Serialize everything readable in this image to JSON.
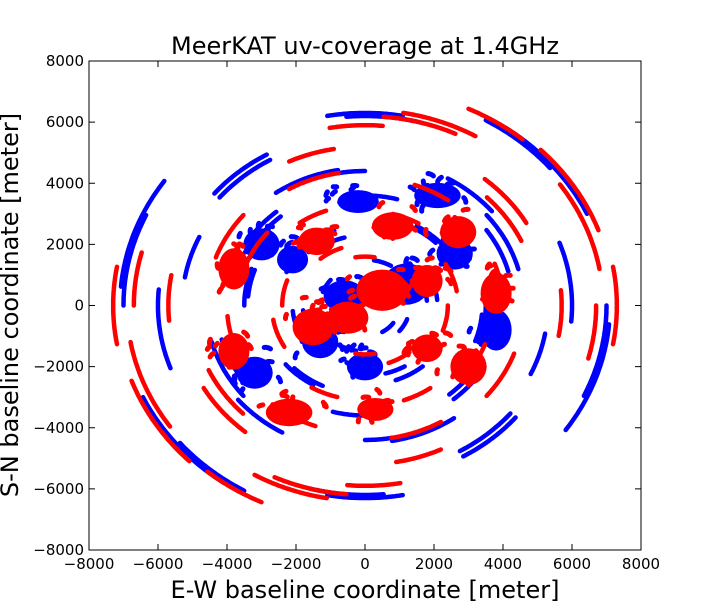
{
  "chart_data": {
    "type": "scatter",
    "title": "MeerKAT uv-coverage at 1.4GHz",
    "xlabel": "E-W baseline coordinate [meter]",
    "ylabel": "S-N baseline coordinate [meter]",
    "xlim": [
      -8000,
      8000
    ],
    "ylim": [
      -8000,
      8000
    ],
    "xticks": [
      -8000,
      -6000,
      -4000,
      -2000,
      0,
      2000,
      4000,
      6000,
      8000
    ],
    "yticks": [
      -8000,
      -6000,
      -4000,
      -2000,
      0,
      2000,
      4000,
      6000,
      8000
    ],
    "xtick_labels": [
      "−8000",
      "−6000",
      "−4000",
      "−2000",
      "0",
      "2000",
      "4000",
      "6000",
      "8000"
    ],
    "ytick_labels": [
      "−8000",
      "−6000",
      "−4000",
      "−2000",
      "0",
      "2000",
      "4000",
      "6000",
      "8000"
    ],
    "grid": false,
    "series": [
      {
        "color": "#0000ff",
        "arcs": [
          {
            "cx": 0,
            "cy": 0,
            "r": 7100,
            "a0": 145,
            "a1": 175
          },
          {
            "cx": 0,
            "cy": 0,
            "r": 7100,
            "a0": 205,
            "a1": 235
          },
          {
            "cx": 0,
            "cy": 0,
            "r": 7000,
            "a0": -25,
            "a1": 0
          },
          {
            "cx": 0,
            "cy": 0,
            "r": 7000,
            "a0": 40,
            "a1": 60
          },
          {
            "cx": 0,
            "cy": 0,
            "r": 6300,
            "a0": 80,
            "a1": 100
          },
          {
            "cx": 0,
            "cy": 0,
            "r": 6200,
            "a0": 255,
            "a1": 275
          },
          {
            "cx": 0,
            "cy": 0,
            "r": 6000,
            "a0": 175,
            "a1": 200
          },
          {
            "cx": 0,
            "cy": 0,
            "r": 5700,
            "a0": 120,
            "a1": 140
          },
          {
            "cx": 0,
            "cy": 0,
            "r": 5500,
            "a0": 300,
            "a1": 320
          },
          {
            "cx": 0,
            "cy": 0,
            "r": 5300,
            "a0": 155,
            "a1": 170
          },
          {
            "cx": 0,
            "cy": 0,
            "r": 4800,
            "a0": 220,
            "a1": 240
          },
          {
            "cx": 0,
            "cy": 0,
            "r": 4600,
            "a0": 15,
            "a1": 40
          },
          {
            "cx": 0,
            "cy": 0,
            "r": 4500,
            "a0": 100,
            "a1": 125
          },
          {
            "cx": 0,
            "cy": 0,
            "r": 4400,
            "a0": 90,
            "a1": 100
          },
          {
            "cx": 0,
            "cy": 0,
            "r": 4300,
            "a0": 195,
            "a1": 215
          },
          {
            "cx": 0,
            "cy": 0,
            "r": 4000,
            "a0": 130,
            "a1": 150
          },
          {
            "cx": 0,
            "cy": 0,
            "r": 3800,
            "a0": 310,
            "a1": 330
          },
          {
            "cx": 0,
            "cy": 0,
            "r": 3600,
            "a0": 255,
            "a1": 280
          },
          {
            "cx": 0,
            "cy": 0,
            "r": 3500,
            "a0": 160,
            "a1": 180
          },
          {
            "cx": 0,
            "cy": 0,
            "r": 3400,
            "a0": 340,
            "a1": 355
          },
          {
            "cx": 0,
            "cy": 0,
            "r": 3000,
            "a0": 40,
            "a1": 60
          },
          {
            "cx": 0,
            "cy": 0,
            "r": 2900,
            "a0": 225,
            "a1": 245
          },
          {
            "cx": 0,
            "cy": 0,
            "r": 2600,
            "a0": 110,
            "a1": 130
          },
          {
            "cx": 0,
            "cy": 0,
            "r": 2300,
            "a0": 285,
            "a1": 300
          },
          {
            "cx": 0,
            "cy": 0,
            "r": 2100,
            "a0": 185,
            "a1": 205
          },
          {
            "cx": 0,
            "cy": 0,
            "r": 1800,
            "a0": 5,
            "a1": 25
          },
          {
            "cx": 0,
            "cy": 0,
            "r": 1500,
            "a0": 240,
            "a1": 260
          },
          {
            "cx": 0,
            "cy": 0,
            "r": 1300,
            "a0": 140,
            "a1": 160
          },
          {
            "cx": 0,
            "cy": 0,
            "r": 1000,
            "a0": 300,
            "a1": 325
          }
        ],
        "blobs": [
          {
            "x": -3000,
            "y": 2000,
            "rx": 700,
            "ry": 700
          },
          {
            "x": -200,
            "y": 3400,
            "rx": 800,
            "ry": 500
          },
          {
            "x": 2100,
            "y": 3600,
            "rx": 900,
            "ry": 550
          },
          {
            "x": 3800,
            "y": -800,
            "rx": 600,
            "ry": 900
          },
          {
            "x": -2100,
            "y": 1500,
            "rx": 600,
            "ry": 600
          },
          {
            "x": -3200,
            "y": -2200,
            "rx": 700,
            "ry": 700
          },
          {
            "x": 0,
            "y": -2000,
            "rx": 700,
            "ry": 600
          },
          {
            "x": 2600,
            "y": 1700,
            "rx": 700,
            "ry": 700
          },
          {
            "x": -1300,
            "y": -1200,
            "rx": 700,
            "ry": 700
          },
          {
            "x": 1200,
            "y": 700,
            "rx": 900,
            "ry": 900
          },
          {
            "x": -600,
            "y": 300,
            "rx": 800,
            "ry": 700
          }
        ]
      },
      {
        "color": "#ff0000",
        "arcs": [
          {
            "cx": 0,
            "cy": 0,
            "r": 7300,
            "a0": 170,
            "a1": 190
          },
          {
            "cx": 0,
            "cy": 0,
            "r": 7200,
            "a0": 200,
            "a1": 225
          },
          {
            "cx": 0,
            "cy": 0,
            "r": 7100,
            "a0": 50,
            "a1": 65
          },
          {
            "cx": 0,
            "cy": 0,
            "r": 6900,
            "a0": 10,
            "a1": 35
          },
          {
            "cx": 0,
            "cy": 0,
            "r": 6700,
            "a0": -15,
            "a1": 0
          },
          {
            "cx": 0,
            "cy": 0,
            "r": 6400,
            "a0": 240,
            "a1": 260
          },
          {
            "cx": 0,
            "cy": 0,
            "r": 6200,
            "a0": 65,
            "a1": 85
          },
          {
            "cx": 0,
            "cy": 0,
            "r": 5900,
            "a0": 265,
            "a1": 280
          },
          {
            "cx": 0,
            "cy": 0,
            "r": 5700,
            "a0": 170,
            "a1": 185
          },
          {
            "cx": 0,
            "cy": 0,
            "r": 5400,
            "a0": 210,
            "a1": 230
          },
          {
            "cx": 0,
            "cy": 0,
            "r": 5200,
            "a0": 100,
            "a1": 115
          },
          {
            "cx": 0,
            "cy": 0,
            "r": 5000,
            "a0": 25,
            "a1": 45
          },
          {
            "cx": 0,
            "cy": 0,
            "r": 4600,
            "a0": 140,
            "a1": 160
          },
          {
            "cx": 0,
            "cy": 0,
            "r": 4400,
            "a0": 280,
            "a1": 300
          },
          {
            "cx": 0,
            "cy": 0,
            "r": 4200,
            "a0": 55,
            "a1": 70
          },
          {
            "cx": 0,
            "cy": 0,
            "r": 4000,
            "a0": 185,
            "a1": 200
          },
          {
            "cx": 0,
            "cy": 0,
            "r": 3700,
            "a0": 320,
            "a1": 340
          },
          {
            "cx": 0,
            "cy": 0,
            "r": 3300,
            "a0": 110,
            "a1": 125
          },
          {
            "cx": 0,
            "cy": 0,
            "r": 3100,
            "a0": 240,
            "a1": 255
          },
          {
            "cx": 0,
            "cy": 0,
            "r": 2700,
            "a0": 10,
            "a1": 30
          },
          {
            "cx": 0,
            "cy": 0,
            "r": 2400,
            "a0": 160,
            "a1": 180
          },
          {
            "cx": 0,
            "cy": 0,
            "r": 2000,
            "a0": 290,
            "a1": 310
          },
          {
            "cx": 0,
            "cy": 0,
            "r": 1600,
            "a0": 80,
            "a1": 100
          },
          {
            "cx": 0,
            "cy": 0,
            "r": 1200,
            "a0": 200,
            "a1": 220
          }
        ],
        "blobs": [
          {
            "x": -3800,
            "y": 1200,
            "rx": 600,
            "ry": 900
          },
          {
            "x": -1400,
            "y": 2100,
            "rx": 700,
            "ry": 600
          },
          {
            "x": 800,
            "y": 2600,
            "rx": 800,
            "ry": 600
          },
          {
            "x": 2700,
            "y": 2400,
            "rx": 700,
            "ry": 700
          },
          {
            "x": 3800,
            "y": 400,
            "rx": 600,
            "ry": 900
          },
          {
            "x": 3000,
            "y": -2000,
            "rx": 700,
            "ry": 800
          },
          {
            "x": 300,
            "y": -3400,
            "rx": 700,
            "ry": 500
          },
          {
            "x": -2200,
            "y": -3500,
            "rx": 900,
            "ry": 600
          },
          {
            "x": -3800,
            "y": -1500,
            "rx": 600,
            "ry": 800
          },
          {
            "x": -1500,
            "y": -700,
            "rx": 800,
            "ry": 800
          },
          {
            "x": 500,
            "y": 500,
            "rx": 1000,
            "ry": 900
          },
          {
            "x": 1800,
            "y": -1400,
            "rx": 600,
            "ry": 600
          },
          {
            "x": 1800,
            "y": 800,
            "rx": 600,
            "ry": 700
          },
          {
            "x": -500,
            "y": -400,
            "rx": 800,
            "ry": 700
          }
        ]
      }
    ]
  }
}
